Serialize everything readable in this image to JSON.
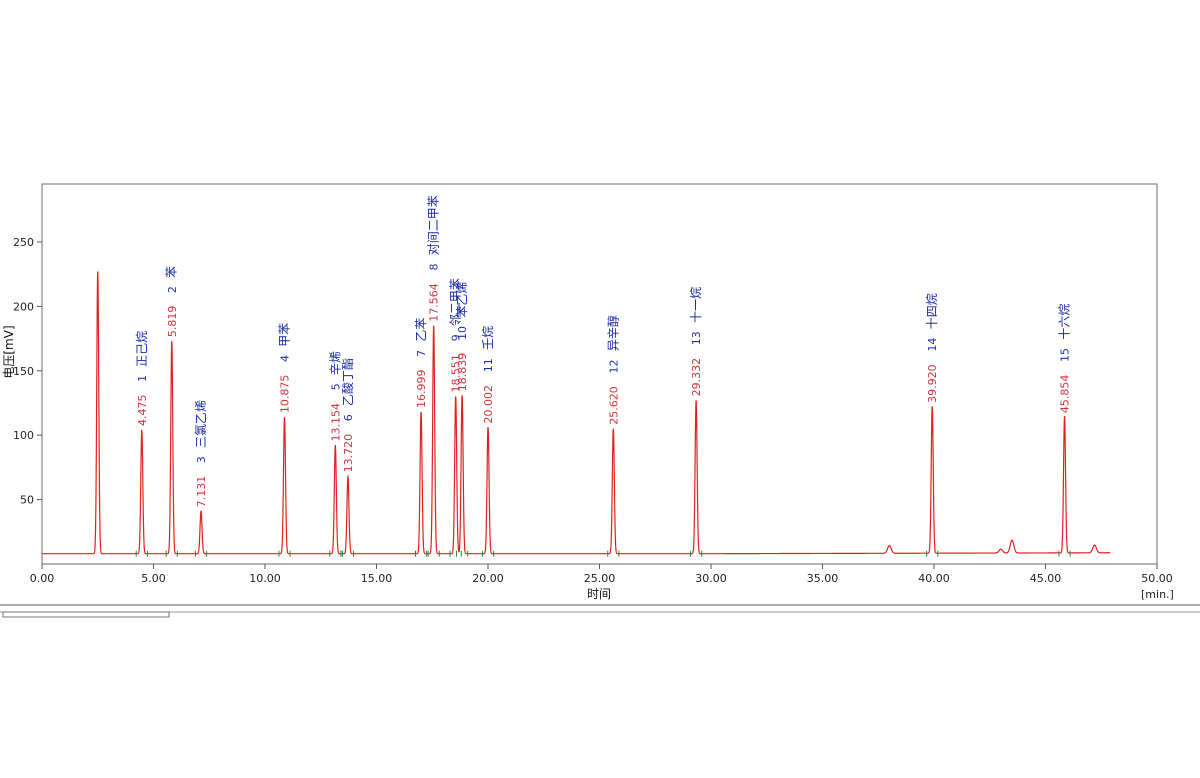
{
  "chart_data": {
    "type": "line",
    "xlabel": "时间",
    "xunit": "[min.]",
    "ylabel": "电压[mV]",
    "xlim": [
      0,
      50
    ],
    "ylim": [
      0,
      295
    ],
    "x_ticks": [
      "0.00",
      "5.00",
      "10.00",
      "15.00",
      "20.00",
      "25.00",
      "30.00",
      "35.00",
      "40.00",
      "45.00",
      "50.00"
    ],
    "y_ticks": [
      "50",
      "100",
      "150",
      "200",
      "250"
    ],
    "grid": false,
    "baseline": 8,
    "solvent_peak": {
      "x": 2.5,
      "y": 227
    },
    "minor_peaks": [
      {
        "x": 38.0,
        "y": 14
      },
      {
        "x": 43.0,
        "y": 11
      },
      {
        "x": 43.5,
        "y": 18
      },
      {
        "x": 47.2,
        "y": 14
      }
    ],
    "peaks": [
      {
        "no": "1",
        "rt": "4.475",
        "x": 4.475,
        "y": 104,
        "name": "正己烷"
      },
      {
        "no": "2",
        "rt": "5.819",
        "x": 5.819,
        "y": 173,
        "name": "苯"
      },
      {
        "no": "3",
        "rt": "7.131",
        "x": 7.131,
        "y": 41,
        "name": "三氯乙烯"
      },
      {
        "no": "4",
        "rt": "10.875",
        "x": 10.875,
        "y": 114,
        "name": "甲苯"
      },
      {
        "no": "5",
        "rt": "13.154",
        "x": 13.154,
        "y": 92,
        "name": "辛烯"
      },
      {
        "no": "6",
        "rt": "13.720",
        "x": 13.72,
        "y": 68,
        "name": "乙酸丁酯"
      },
      {
        "no": "7",
        "rt": "16.999",
        "x": 16.999,
        "y": 118,
        "name": "乙苯"
      },
      {
        "no": "8",
        "rt": "17.564",
        "x": 17.564,
        "y": 185,
        "name": "对间二甲苯"
      },
      {
        "no": "9",
        "rt": "18.551",
        "x": 18.551,
        "y": 130,
        "name": "邻二甲苯"
      },
      {
        "no": "10",
        "rt": "18.839",
        "x": 18.839,
        "y": 131,
        "name": "苯乙烯"
      },
      {
        "no": "11",
        "rt": "20.002",
        "x": 20.002,
        "y": 106,
        "name": "壬烷"
      },
      {
        "no": "12",
        "rt": "25.620",
        "x": 25.62,
        "y": 105,
        "name": "异辛醇"
      },
      {
        "no": "13",
        "rt": "29.332",
        "x": 29.332,
        "y": 127,
        "name": "十一烷"
      },
      {
        "no": "14",
        "rt": "39.920",
        "x": 39.92,
        "y": 122,
        "name": "十四烷"
      },
      {
        "no": "15",
        "rt": "45.854",
        "x": 45.854,
        "y": 114,
        "name": "十六烷"
      }
    ],
    "colors": {
      "trace": "#e02020",
      "rt_label": "#d0343c",
      "name_label": "#1a2aa8",
      "marker": "#2a8a2a"
    }
  }
}
